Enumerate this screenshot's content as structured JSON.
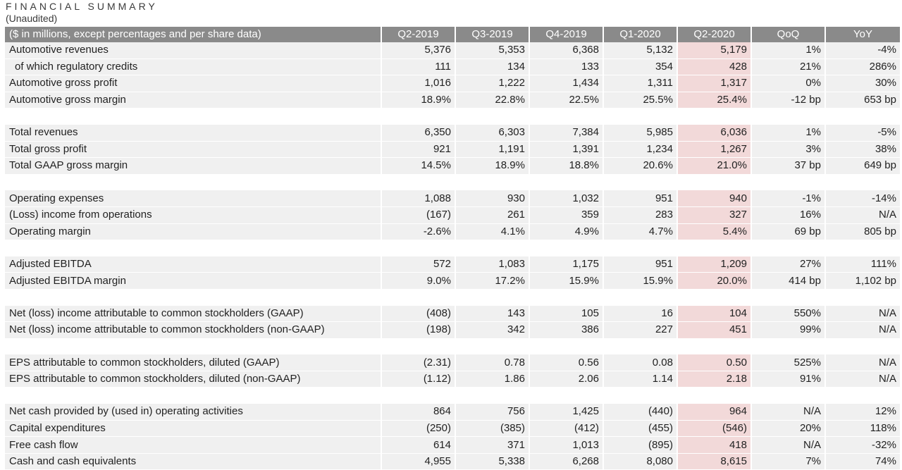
{
  "title": "FINANCIAL SUMMARY",
  "subtitle": "(Unaudited)",
  "header": {
    "label": "($ in millions, except percentages and per share data)",
    "columns": [
      "Q2-2019",
      "Q3-2019",
      "Q4-2019",
      "Q1-2020",
      "Q2-2020",
      "QoQ",
      "YoY"
    ]
  },
  "groups": [
    [
      {
        "label": "Automotive revenues",
        "values": [
          "5,376",
          "5,353",
          "6,368",
          "5,132",
          "5,179",
          "1%",
          "-4%"
        ]
      },
      {
        "label": "of which regulatory credits",
        "indent": true,
        "values": [
          "111",
          "134",
          "133",
          "354",
          "428",
          "21%",
          "286%"
        ]
      },
      {
        "label": "Automotive gross profit",
        "values": [
          "1,016",
          "1,222",
          "1,434",
          "1,311",
          "1,317",
          "0%",
          "30%"
        ]
      },
      {
        "label": "Automotive gross margin",
        "values": [
          "18.9%",
          "22.8%",
          "22.5%",
          "25.5%",
          "25.4%",
          "-12 bp",
          "653 bp"
        ]
      }
    ],
    [
      {
        "label": "Total revenues",
        "values": [
          "6,350",
          "6,303",
          "7,384",
          "5,985",
          "6,036",
          "1%",
          "-5%"
        ]
      },
      {
        "label": "Total gross profit",
        "values": [
          "921",
          "1,191",
          "1,391",
          "1,234",
          "1,267",
          "3%",
          "38%"
        ]
      },
      {
        "label": "Total GAAP gross margin",
        "values": [
          "14.5%",
          "18.9%",
          "18.8%",
          "20.6%",
          "21.0%",
          "37 bp",
          "649 bp"
        ]
      }
    ],
    [
      {
        "label": "Operating expenses",
        "values": [
          "1,088",
          "930",
          "1,032",
          "951",
          "940",
          "-1%",
          "-14%"
        ]
      },
      {
        "label": "(Loss) income from operations",
        "values": [
          "(167)",
          "261",
          "359",
          "283",
          "327",
          "16%",
          "N/A"
        ]
      },
      {
        "label": "Operating margin",
        "values": [
          "-2.6%",
          "4.1%",
          "4.9%",
          "4.7%",
          "5.4%",
          "69 bp",
          "805 bp"
        ]
      }
    ],
    [
      {
        "label": "Adjusted EBITDA",
        "values": [
          "572",
          "1,083",
          "1,175",
          "951",
          "1,209",
          "27%",
          "111%"
        ]
      },
      {
        "label": "Adjusted EBITDA margin",
        "values": [
          "9.0%",
          "17.2%",
          "15.9%",
          "15.9%",
          "20.0%",
          "414 bp",
          "1,102 bp"
        ]
      }
    ],
    [
      {
        "label": "Net (loss) income attributable to common stockholders (GAAP)",
        "values": [
          "(408)",
          "143",
          "105",
          "16",
          "104",
          "550%",
          "N/A"
        ]
      },
      {
        "label": "Net (loss) income attributable to common stockholders (non-GAAP)",
        "values": [
          "(198)",
          "342",
          "386",
          "227",
          "451",
          "99%",
          "N/A"
        ]
      }
    ],
    [
      {
        "label": "EPS attributable to common stockholders, diluted (GAAP)",
        "values": [
          "(2.31)",
          "0.78",
          "0.56",
          "0.08",
          "0.50",
          "525%",
          "N/A"
        ]
      },
      {
        "label": "EPS attributable to common stockholders, diluted (non-GAAP)",
        "values": [
          "(1.12)",
          "1.86",
          "2.06",
          "1.14",
          "2.18",
          "91%",
          "N/A"
        ]
      }
    ],
    [
      {
        "label": "Net cash provided by (used in) operating activities",
        "values": [
          "864",
          "756",
          "1,425",
          "(440)",
          "964",
          "N/A",
          "12%"
        ]
      },
      {
        "label": "Capital expenditures",
        "values": [
          "(250)",
          "(385)",
          "(412)",
          "(455)",
          "(546)",
          "20%",
          "118%"
        ]
      },
      {
        "label": "Free cash flow",
        "values": [
          "614",
          "371",
          "1,013",
          "(895)",
          "418",
          "N/A",
          "-32%"
        ]
      },
      {
        "label": "Cash and cash equivalents",
        "values": [
          "4,955",
          "5,338",
          "6,268",
          "8,080",
          "8,615",
          "7%",
          "74%"
        ]
      }
    ]
  ],
  "colors": {
    "header_bg": "#8a8a8a",
    "row_bg": "#f0f0f0",
    "highlight_bg": "#f2d9d9"
  }
}
